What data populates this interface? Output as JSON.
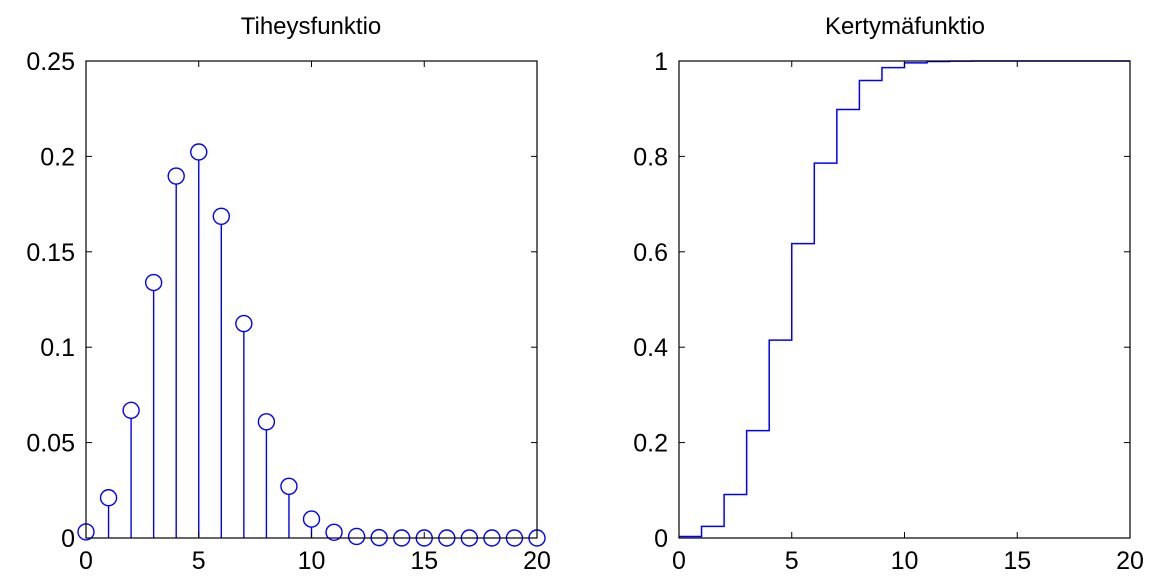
{
  "chart_data": [
    {
      "type": "stem",
      "title": "Tiheysfunktio",
      "xlabel": "",
      "ylabel": "",
      "xlim": [
        0,
        20
      ],
      "ylim": [
        0,
        0.25
      ],
      "xticks": [
        0,
        5,
        10,
        15,
        20
      ],
      "xtick_labels": [
        "0",
        "5",
        "10",
        "15",
        "20"
      ],
      "yticks": [
        0,
        0.05,
        0.1,
        0.15,
        0.2,
        0.25
      ],
      "ytick_labels": [
        "0",
        "0.05",
        "0.1",
        "0.15",
        "0.2",
        "0.25"
      ],
      "grid": false,
      "color": "#0000ff",
      "marker": "circle-open",
      "x": [
        0,
        1,
        2,
        3,
        4,
        5,
        6,
        7,
        8,
        9,
        10,
        11,
        12,
        13,
        14,
        15,
        16,
        17,
        18,
        19,
        20
      ],
      "y": [
        0.0032,
        0.0211,
        0.0669,
        0.1339,
        0.1897,
        0.2023,
        0.1686,
        0.1124,
        0.0609,
        0.0271,
        0.0099,
        0.003,
        0.0008,
        0.0002,
        0.0,
        0.0,
        0.0,
        0.0,
        0.0,
        0.0,
        0.0
      ]
    },
    {
      "type": "step",
      "title": "Kertymäfunktio",
      "xlabel": "",
      "ylabel": "",
      "xlim": [
        0,
        20
      ],
      "ylim": [
        0,
        1
      ],
      "xticks": [
        0,
        5,
        10,
        15,
        20
      ],
      "xtick_labels": [
        "0",
        "5",
        "10",
        "15",
        "20"
      ],
      "yticks": [
        0,
        0.2,
        0.4,
        0.6,
        0.8,
        1
      ],
      "ytick_labels": [
        "0",
        "0.2",
        "0.4",
        "0.6",
        "0.8",
        "1"
      ],
      "grid": false,
      "color": "#0000ff",
      "x": [
        0,
        1,
        2,
        3,
        4,
        5,
        6,
        7,
        8,
        9,
        10,
        11,
        12,
        13,
        14,
        15,
        16,
        17,
        18,
        19,
        20
      ],
      "y": [
        0.0032,
        0.0243,
        0.0913,
        0.2252,
        0.4148,
        0.6172,
        0.7858,
        0.8982,
        0.9591,
        0.9861,
        0.996,
        0.999,
        0.9998,
        1.0,
        1.0,
        1.0,
        1.0,
        1.0,
        1.0,
        1.0,
        1.0
      ]
    }
  ]
}
